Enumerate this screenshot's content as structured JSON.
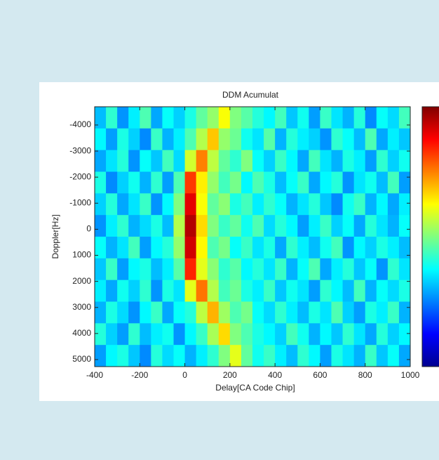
{
  "chart_data": {
    "type": "heatmap",
    "title": "DDM Acumulat",
    "xlabel": "Delay[CA Code Chip]",
    "ylabel": "Doppler[Hz]",
    "xlim": [
      -400,
      1000
    ],
    "xticks": [
      -400,
      -200,
      0,
      200,
      400,
      600,
      800,
      1000
    ],
    "ylim": [
      -4700,
      5270
    ],
    "y_reversed": true,
    "yticks": [
      -4000,
      -3000,
      -2000,
      -1000,
      0,
      1000,
      2000,
      3000,
      4000,
      5000
    ],
    "zlim": [
      0,
      1
    ],
    "colormap": "jet",
    "z": [
      [
        0.31,
        0.42,
        0.27,
        0.36,
        0.45,
        0.29,
        0.38,
        0.33,
        0.4,
        0.47,
        0.52,
        0.62,
        0.5,
        0.46,
        0.41,
        0.37,
        0.44,
        0.32,
        0.39,
        0.28,
        0.43,
        0.35,
        0.3,
        0.41,
        0.26,
        0.38,
        0.34,
        0.44
      ],
      [
        0.37,
        0.28,
        0.4,
        0.33,
        0.26,
        0.43,
        0.3,
        0.36,
        0.45,
        0.55,
        0.68,
        0.52,
        0.48,
        0.39,
        0.35,
        0.46,
        0.3,
        0.41,
        0.36,
        0.33,
        0.27,
        0.42,
        0.38,
        0.31,
        0.45,
        0.29,
        0.36,
        0.32
      ],
      [
        0.29,
        0.35,
        0.41,
        0.27,
        0.38,
        0.32,
        0.44,
        0.34,
        0.58,
        0.75,
        0.56,
        0.47,
        0.42,
        0.5,
        0.38,
        0.33,
        0.43,
        0.37,
        0.29,
        0.44,
        0.35,
        0.3,
        0.4,
        0.36,
        0.28,
        0.42,
        0.33,
        0.39
      ],
      [
        0.4,
        0.26,
        0.33,
        0.39,
        0.3,
        0.42,
        0.28,
        0.45,
        0.82,
        0.64,
        0.52,
        0.44,
        0.49,
        0.37,
        0.45,
        0.4,
        0.31,
        0.38,
        0.43,
        0.29,
        0.37,
        0.41,
        0.27,
        0.35,
        0.39,
        0.31,
        0.44,
        0.28
      ],
      [
        0.33,
        0.41,
        0.29,
        0.35,
        0.43,
        0.27,
        0.37,
        0.5,
        0.9,
        0.62,
        0.47,
        0.51,
        0.4,
        0.44,
        0.36,
        0.42,
        0.38,
        0.3,
        0.35,
        0.41,
        0.32,
        0.26,
        0.39,
        0.43,
        0.3,
        0.37,
        0.29,
        0.36
      ],
      [
        0.27,
        0.36,
        0.42,
        0.3,
        0.34,
        0.4,
        0.31,
        0.55,
        0.95,
        0.66,
        0.5,
        0.43,
        0.47,
        0.39,
        0.45,
        0.34,
        0.41,
        0.37,
        0.28,
        0.36,
        0.43,
        0.33,
        0.38,
        0.29,
        0.41,
        0.35,
        0.3,
        0.38
      ],
      [
        0.38,
        0.3,
        0.35,
        0.44,
        0.28,
        0.37,
        0.41,
        0.52,
        0.92,
        0.63,
        0.45,
        0.49,
        0.38,
        0.43,
        0.35,
        0.4,
        0.29,
        0.42,
        0.36,
        0.31,
        0.39,
        0.44,
        0.27,
        0.37,
        0.33,
        0.4,
        0.36,
        0.31
      ],
      [
        0.32,
        0.43,
        0.28,
        0.37,
        0.4,
        0.31,
        0.36,
        0.46,
        0.84,
        0.6,
        0.51,
        0.42,
        0.46,
        0.37,
        0.41,
        0.35,
        0.43,
        0.3,
        0.38,
        0.45,
        0.29,
        0.36,
        0.41,
        0.32,
        0.38,
        0.27,
        0.42,
        0.35
      ],
      [
        0.36,
        0.29,
        0.39,
        0.33,
        0.42,
        0.27,
        0.4,
        0.35,
        0.6,
        0.76,
        0.55,
        0.44,
        0.48,
        0.4,
        0.36,
        0.43,
        0.32,
        0.39,
        0.35,
        0.28,
        0.42,
        0.37,
        0.31,
        0.44,
        0.3,
        0.38,
        0.34,
        0.4
      ],
      [
        0.3,
        0.4,
        0.34,
        0.27,
        0.37,
        0.43,
        0.29,
        0.38,
        0.41,
        0.56,
        0.7,
        0.53,
        0.45,
        0.49,
        0.38,
        0.34,
        0.42,
        0.36,
        0.31,
        0.4,
        0.35,
        0.45,
        0.33,
        0.28,
        0.4,
        0.36,
        0.43,
        0.3
      ],
      [
        0.41,
        0.33,
        0.28,
        0.42,
        0.31,
        0.36,
        0.39,
        0.27,
        0.37,
        0.43,
        0.54,
        0.66,
        0.5,
        0.45,
        0.4,
        0.37,
        0.33,
        0.44,
        0.39,
        0.3,
        0.37,
        0.32,
        0.42,
        0.35,
        0.29,
        0.41,
        0.33,
        0.37
      ],
      [
        0.28,
        0.37,
        0.4,
        0.32,
        0.26,
        0.41,
        0.34,
        0.38,
        0.3,
        0.36,
        0.42,
        0.5,
        0.6,
        0.47,
        0.39,
        0.43,
        0.36,
        0.31,
        0.42,
        0.37,
        0.28,
        0.4,
        0.35,
        0.3,
        0.43,
        0.32,
        0.38,
        0.29
      ]
    ]
  }
}
